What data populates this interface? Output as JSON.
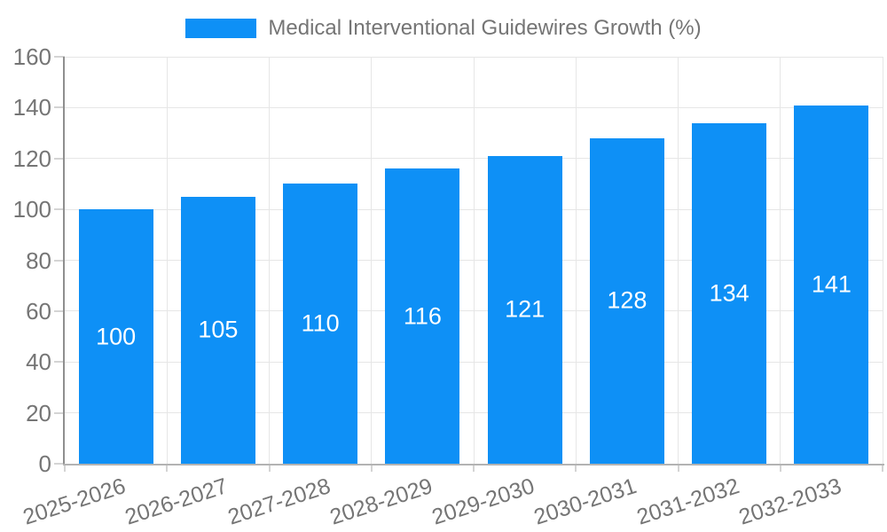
{
  "legend": {
    "label": "Medical Interventional Guidewires Growth (%)"
  },
  "chart_data": {
    "type": "bar",
    "title": "Medical Interventional Guidewires Growth (%)",
    "categories": [
      "2025-2026",
      "2026-2027",
      "2027-2028",
      "2028-2029",
      "2029-2030",
      "2030-2031",
      "2031-2032",
      "2032-2033"
    ],
    "values": [
      100,
      105,
      110,
      116,
      121,
      128,
      134,
      141
    ],
    "bar_value_labels": [
      "100",
      "105",
      "110",
      "116",
      "121",
      "128",
      "134",
      "141"
    ],
    "xlabel": "",
    "ylabel": "",
    "ylim": [
      0,
      160
    ],
    "yticks": [
      0,
      20,
      40,
      60,
      80,
      100,
      120,
      140,
      160
    ],
    "grid": true,
    "legend_position": "top-center",
    "x_label_rotation_deg": -18,
    "colors": {
      "bar": "#0E90F6",
      "bar_label_text": "#FFFFFF",
      "axis_text": "#757575",
      "legend_text": "#757575",
      "gridline": "#E6E6E6",
      "y_axis_line": "#8F8F8F",
      "x_axis_line": "#B3B3B3",
      "tick_mark": "#D4D4D4",
      "background": "#FFFFFF"
    }
  }
}
